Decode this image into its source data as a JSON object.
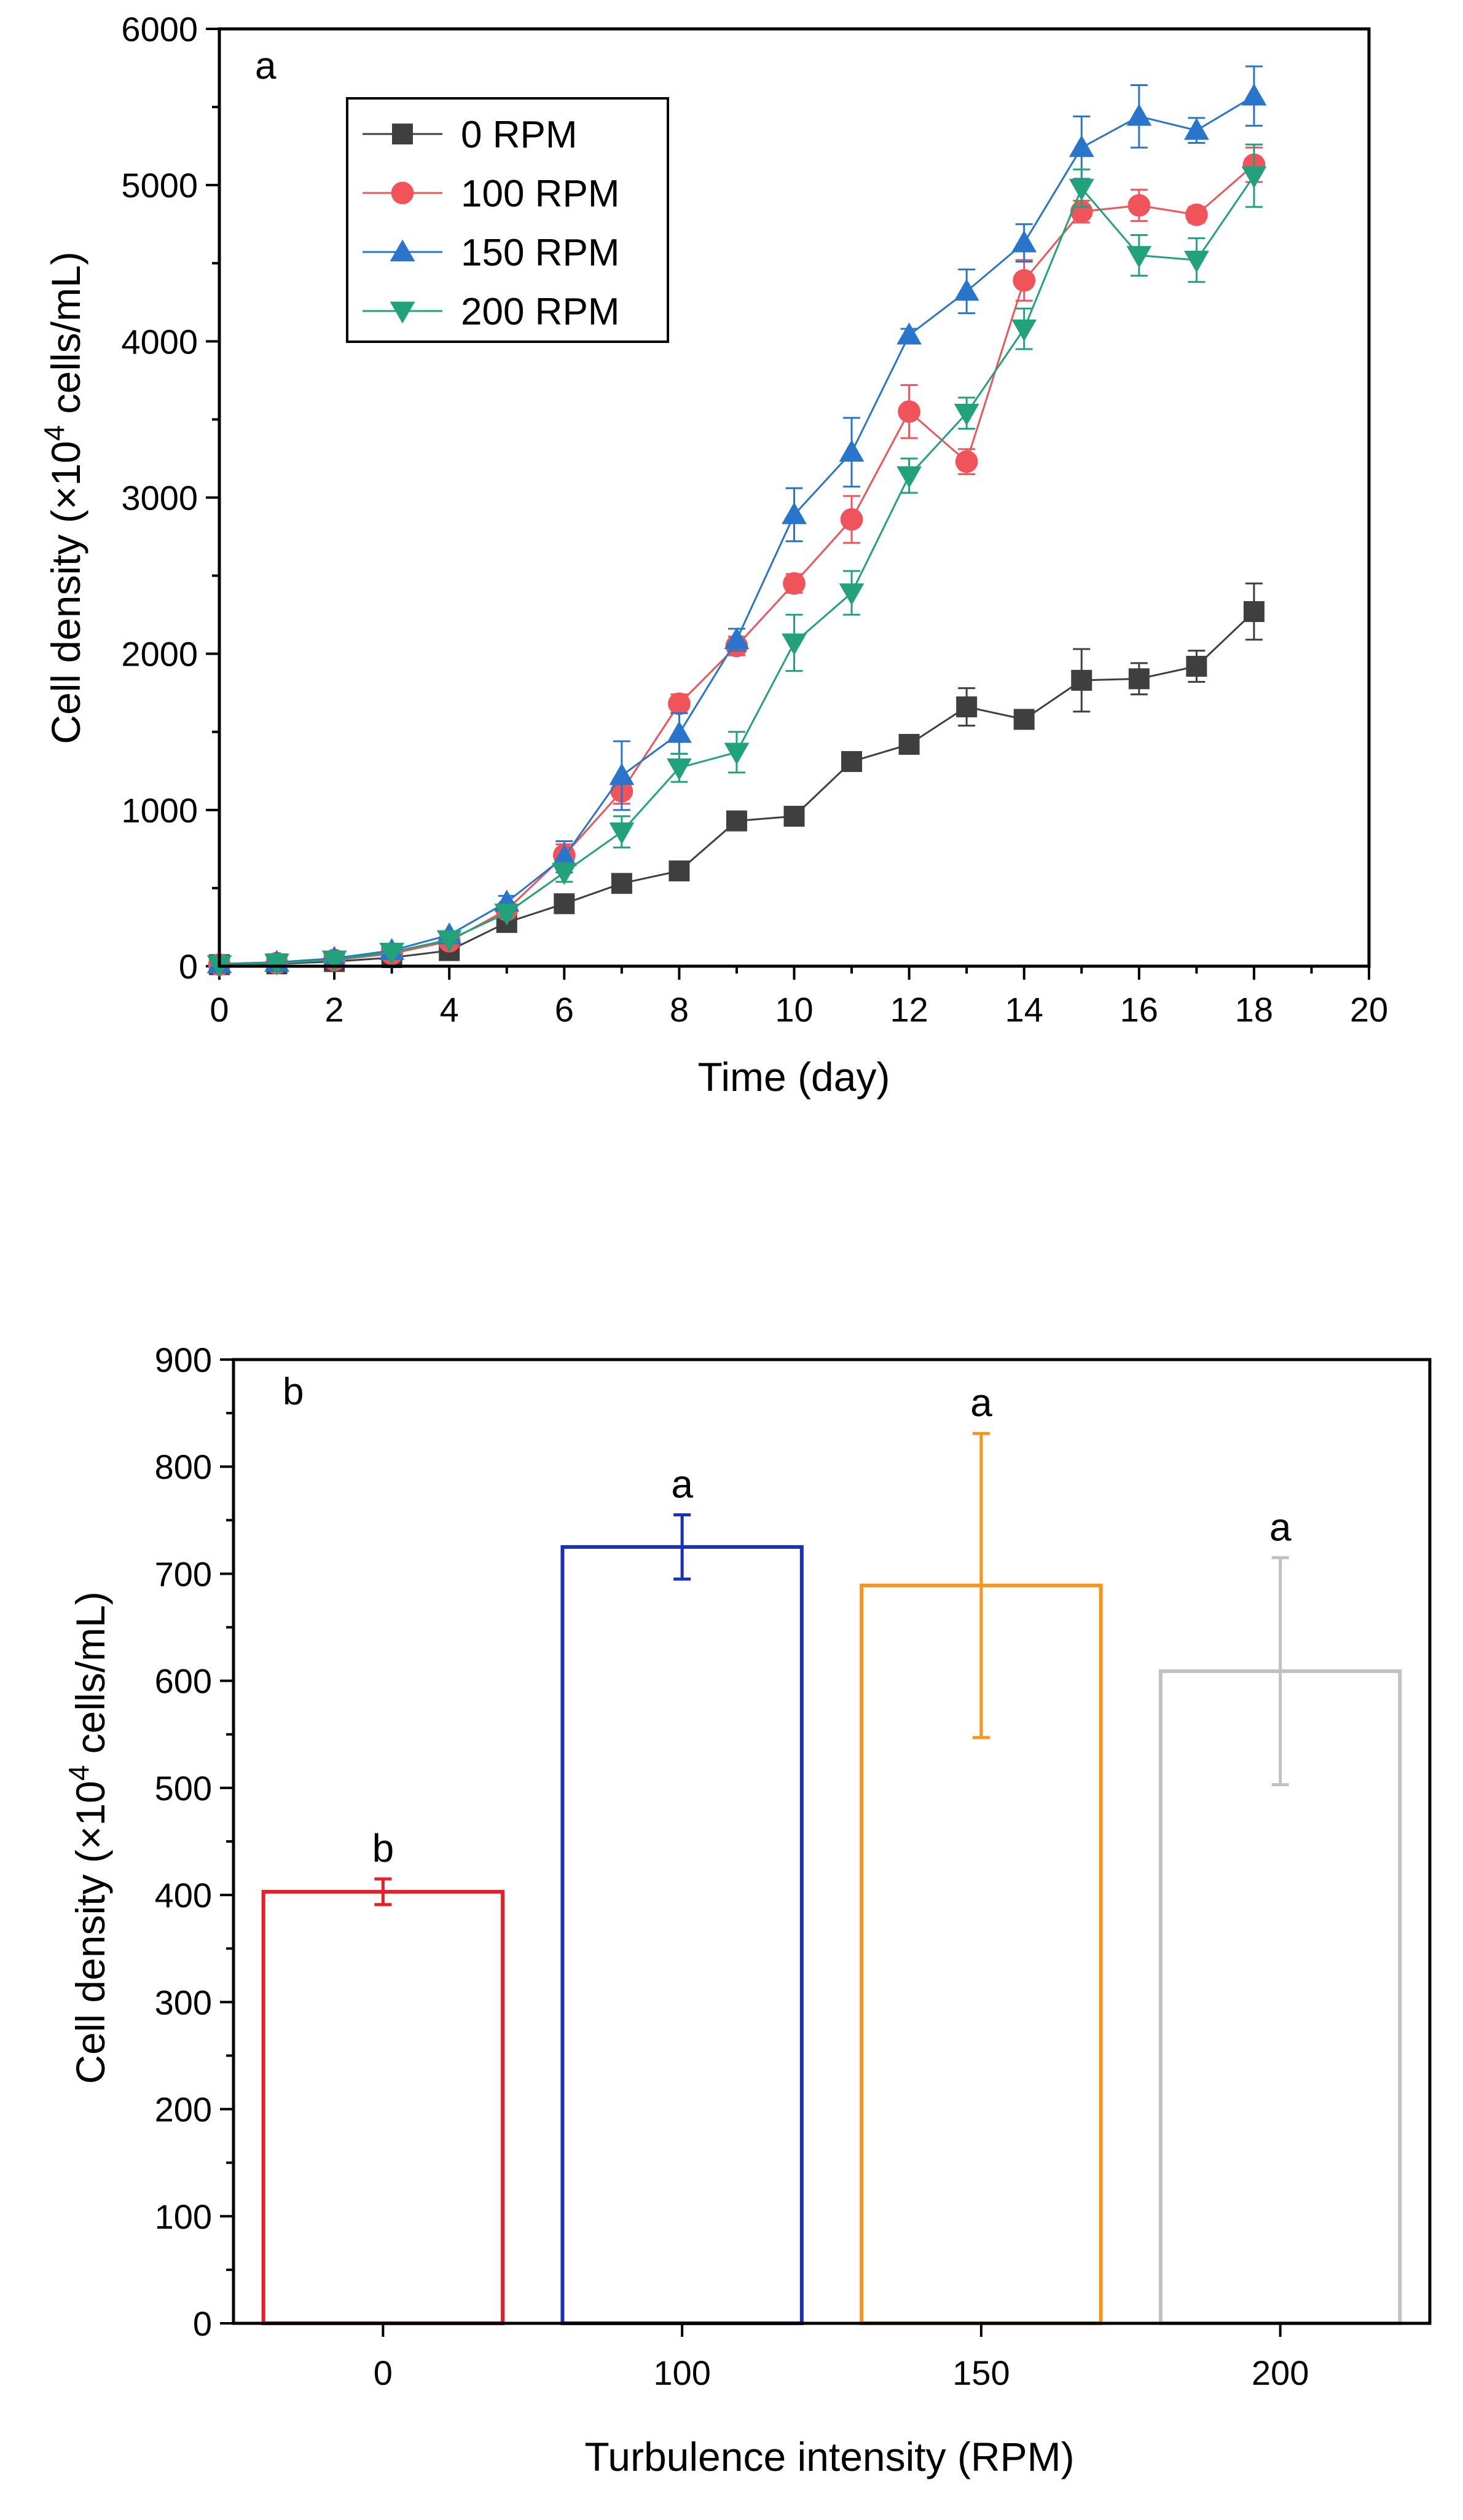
{
  "chart_data": [
    {
      "type": "line",
      "panel_label": "a",
      "xlabel": "Time (day)",
      "ylabel_prefix": "Cell density (×10",
      "ylabel_exp": "4",
      "ylabel_suffix": " cells/mL)",
      "xlim": [
        0,
        20
      ],
      "ylim": [
        0,
        6000
      ],
      "xticks": [
        0,
        2,
        4,
        6,
        8,
        10,
        12,
        14,
        16,
        18,
        20
      ],
      "yticks": [
        0,
        1000,
        2000,
        3000,
        4000,
        5000,
        6000
      ],
      "x": [
        0,
        1,
        2,
        3,
        4,
        5,
        6,
        7,
        8,
        9,
        10,
        11,
        12,
        13,
        14,
        15,
        16,
        17,
        18
      ],
      "legend_position": "top-left",
      "series": [
        {
          "name": "0 RPM",
          "color": "#3f3f3f",
          "marker": "square",
          "values": [
            10,
            15,
            30,
            55,
            100,
            280,
            400,
            530,
            610,
            930,
            960,
            1310,
            1420,
            1660,
            1580,
            1830,
            1840,
            1920,
            2270
          ],
          "errors": [
            5,
            5,
            5,
            8,
            10,
            20,
            20,
            30,
            30,
            30,
            40,
            60,
            40,
            120,
            40,
            200,
            100,
            100,
            180
          ]
        },
        {
          "name": "100 RPM",
          "color": "#f0545a",
          "marker": "circle",
          "values": [
            10,
            20,
            40,
            80,
            160,
            360,
            710,
            1120,
            1680,
            2050,
            2450,
            2860,
            3550,
            3230,
            4390,
            4830,
            4870,
            4810,
            5130
          ],
          "errors": [
            5,
            5,
            5,
            8,
            15,
            40,
            70,
            80,
            60,
            60,
            60,
            150,
            170,
            80,
            130,
            70,
            100,
            50,
            110
          ]
        },
        {
          "name": "150 RPM",
          "color": "#2875cb",
          "marker": "triangle-up",
          "values": [
            15,
            25,
            50,
            100,
            200,
            410,
            700,
            1220,
            1490,
            2090,
            2890,
            3290,
            4040,
            4320,
            4630,
            5240,
            5440,
            5350,
            5570
          ],
          "errors": [
            5,
            5,
            5,
            8,
            20,
            40,
            100,
            220,
            130,
            70,
            170,
            220,
            40,
            140,
            120,
            200,
            200,
            80,
            190
          ]
        },
        {
          "name": "200 RPM",
          "color": "#22a27a",
          "marker": "triangle-down",
          "values": [
            10,
            20,
            40,
            90,
            170,
            340,
            600,
            860,
            1270,
            1370,
            2070,
            2390,
            3140,
            3540,
            4080,
            4980,
            4550,
            4520,
            5060
          ],
          "errors": [
            5,
            5,
            5,
            8,
            15,
            30,
            60,
            100,
            90,
            130,
            180,
            140,
            110,
            100,
            130,
            120,
            130,
            140,
            200
          ]
        }
      ]
    },
    {
      "type": "bar",
      "panel_label": "b",
      "xlabel": "Turbulence intensity (RPM)",
      "ylabel_prefix": "Cell density (×10",
      "ylabel_exp": "4",
      "ylabel_suffix": " cells/mL)",
      "ylim": [
        0,
        900
      ],
      "yticks": [
        0,
        100,
        200,
        300,
        400,
        500,
        600,
        700,
        800,
        900
      ],
      "categories": [
        "0",
        "100",
        "150",
        "200"
      ],
      "values": [
        403,
        725,
        689,
        609
      ],
      "errors": [
        12,
        30,
        142,
        106
      ],
      "significance": [
        "b",
        "a",
        "a",
        "a"
      ],
      "colors": [
        "#ee1c24",
        "#1c2fb7",
        "#f7941d",
        "#c1c1c1"
      ]
    }
  ]
}
